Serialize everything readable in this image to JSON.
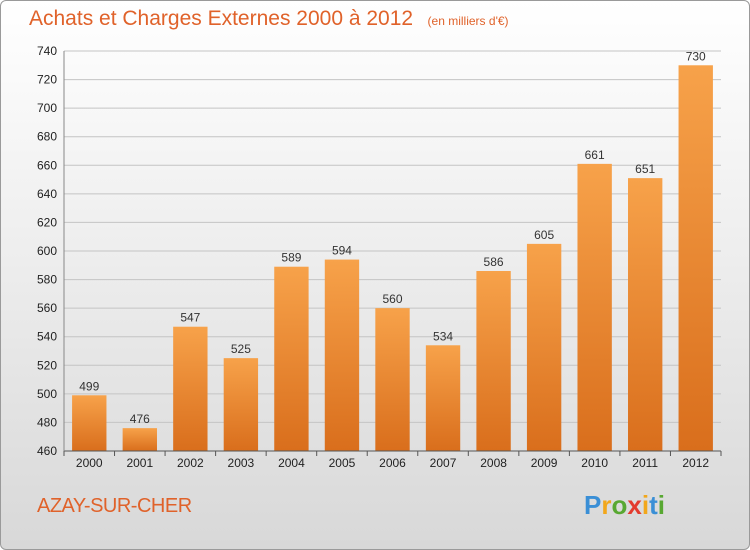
{
  "header": {
    "title": "Achats et Charges Externes 2000 à 2012",
    "subtitle": "(en milliers d'€)"
  },
  "footer": {
    "commune": "AZAY-SUR-CHER",
    "logo": {
      "letters": [
        "P",
        "r",
        "o",
        "x",
        "i",
        "t",
        "i"
      ],
      "colors": [
        "#3a8fd6",
        "#f2a71b",
        "#58a832",
        "#e33b2e",
        "#f2a71b",
        "#3a8fd6",
        "#58a832"
      ]
    }
  },
  "chart_data": {
    "type": "bar",
    "title": "Achats et Charges Externes 2000 à 2012",
    "subtitle": "(en milliers d'€)",
    "categories": [
      "2000",
      "2001",
      "2002",
      "2003",
      "2004",
      "2005",
      "2006",
      "2007",
      "2008",
      "2009",
      "2010",
      "2011",
      "2012"
    ],
    "values": [
      499,
      476,
      547,
      525,
      589,
      594,
      560,
      534,
      586,
      605,
      661,
      651,
      730
    ],
    "ylim": [
      460,
      740
    ],
    "yticks": [
      460,
      480,
      500,
      520,
      540,
      560,
      580,
      600,
      620,
      640,
      660,
      680,
      700,
      720,
      740
    ],
    "grid": true,
    "bar_color": "#f0862c"
  }
}
